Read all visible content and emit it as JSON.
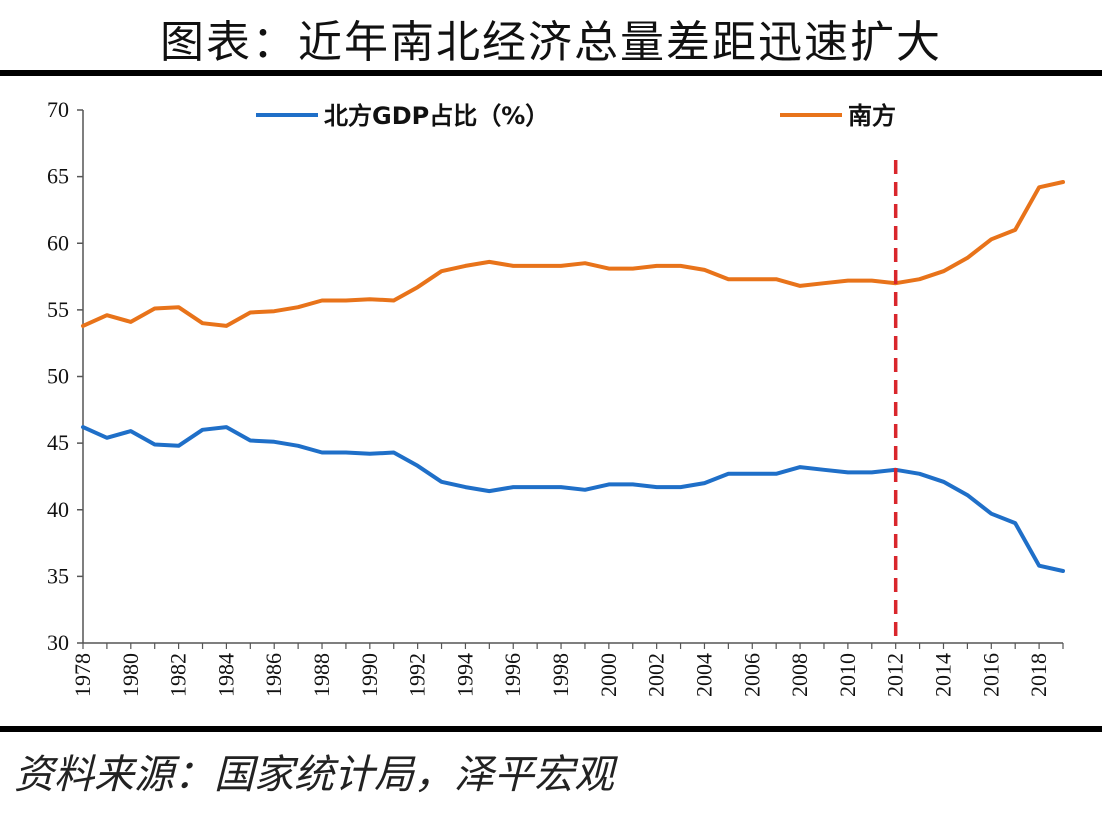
{
  "header": {
    "title": "图表：近年南北经济总量差距迅速扩大"
  },
  "footer": {
    "source": "资料来源：国家统计局，泽平宏观"
  },
  "colors": {
    "north": "#1f6fc8",
    "south": "#e8731a",
    "marker": "#d9262c",
    "axis": "#555555"
  },
  "chart_data": {
    "type": "line",
    "title": "图表：近年南北经济总量差距迅速扩大",
    "xlabel": "",
    "ylabel": "",
    "ylim": [
      30,
      70
    ],
    "yticks": [
      "30",
      "35",
      "40",
      "45",
      "50",
      "55",
      "60",
      "65",
      "70"
    ],
    "xlim": [
      1978,
      2019
    ],
    "xticks": [
      "1978",
      "1980",
      "1982",
      "1984",
      "1986",
      "1988",
      "1990",
      "1992",
      "1994",
      "1996",
      "1998",
      "2000",
      "2002",
      "2004",
      "2006",
      "2008",
      "2010",
      "2012",
      "2014",
      "2016",
      "2018"
    ],
    "legend_position": "top",
    "x": [
      1978,
      1979,
      1980,
      1981,
      1982,
      1983,
      1984,
      1985,
      1986,
      1987,
      1988,
      1989,
      1990,
      1991,
      1992,
      1993,
      1994,
      1995,
      1996,
      1997,
      1998,
      1999,
      2000,
      2001,
      2002,
      2003,
      2004,
      2005,
      2006,
      2007,
      2008,
      2009,
      2010,
      2011,
      2012,
      2013,
      2014,
      2015,
      2016,
      2017,
      2018,
      2019
    ],
    "series": [
      {
        "name": "北方GDP占比（%）",
        "key": "north",
        "values": [
          46.2,
          45.4,
          45.9,
          44.9,
          44.8,
          46.0,
          46.2,
          45.2,
          45.1,
          44.8,
          44.3,
          44.3,
          44.2,
          44.3,
          43.3,
          42.1,
          41.7,
          41.4,
          41.7,
          41.7,
          41.7,
          41.5,
          41.9,
          41.9,
          41.7,
          41.7,
          42.0,
          42.7,
          42.7,
          42.7,
          43.2,
          43.0,
          42.8,
          42.8,
          43.0,
          42.7,
          42.1,
          41.1,
          39.7,
          39.0,
          35.8,
          35.4
        ]
      },
      {
        "name": "南方",
        "key": "south",
        "values": [
          53.8,
          54.6,
          54.1,
          55.1,
          55.2,
          54.0,
          53.8,
          54.8,
          54.9,
          55.2,
          55.7,
          55.7,
          55.8,
          55.7,
          56.7,
          57.9,
          58.3,
          58.6,
          58.3,
          58.3,
          58.3,
          58.5,
          58.1,
          58.1,
          58.3,
          58.3,
          58.0,
          57.3,
          57.3,
          57.3,
          56.8,
          57.0,
          57.2,
          57.2,
          57.0,
          57.3,
          57.9,
          58.9,
          60.3,
          61.0,
          64.2,
          64.6
        ]
      }
    ],
    "annotations": [
      {
        "type": "vertical-dashed-line",
        "x": 2012
      }
    ]
  }
}
